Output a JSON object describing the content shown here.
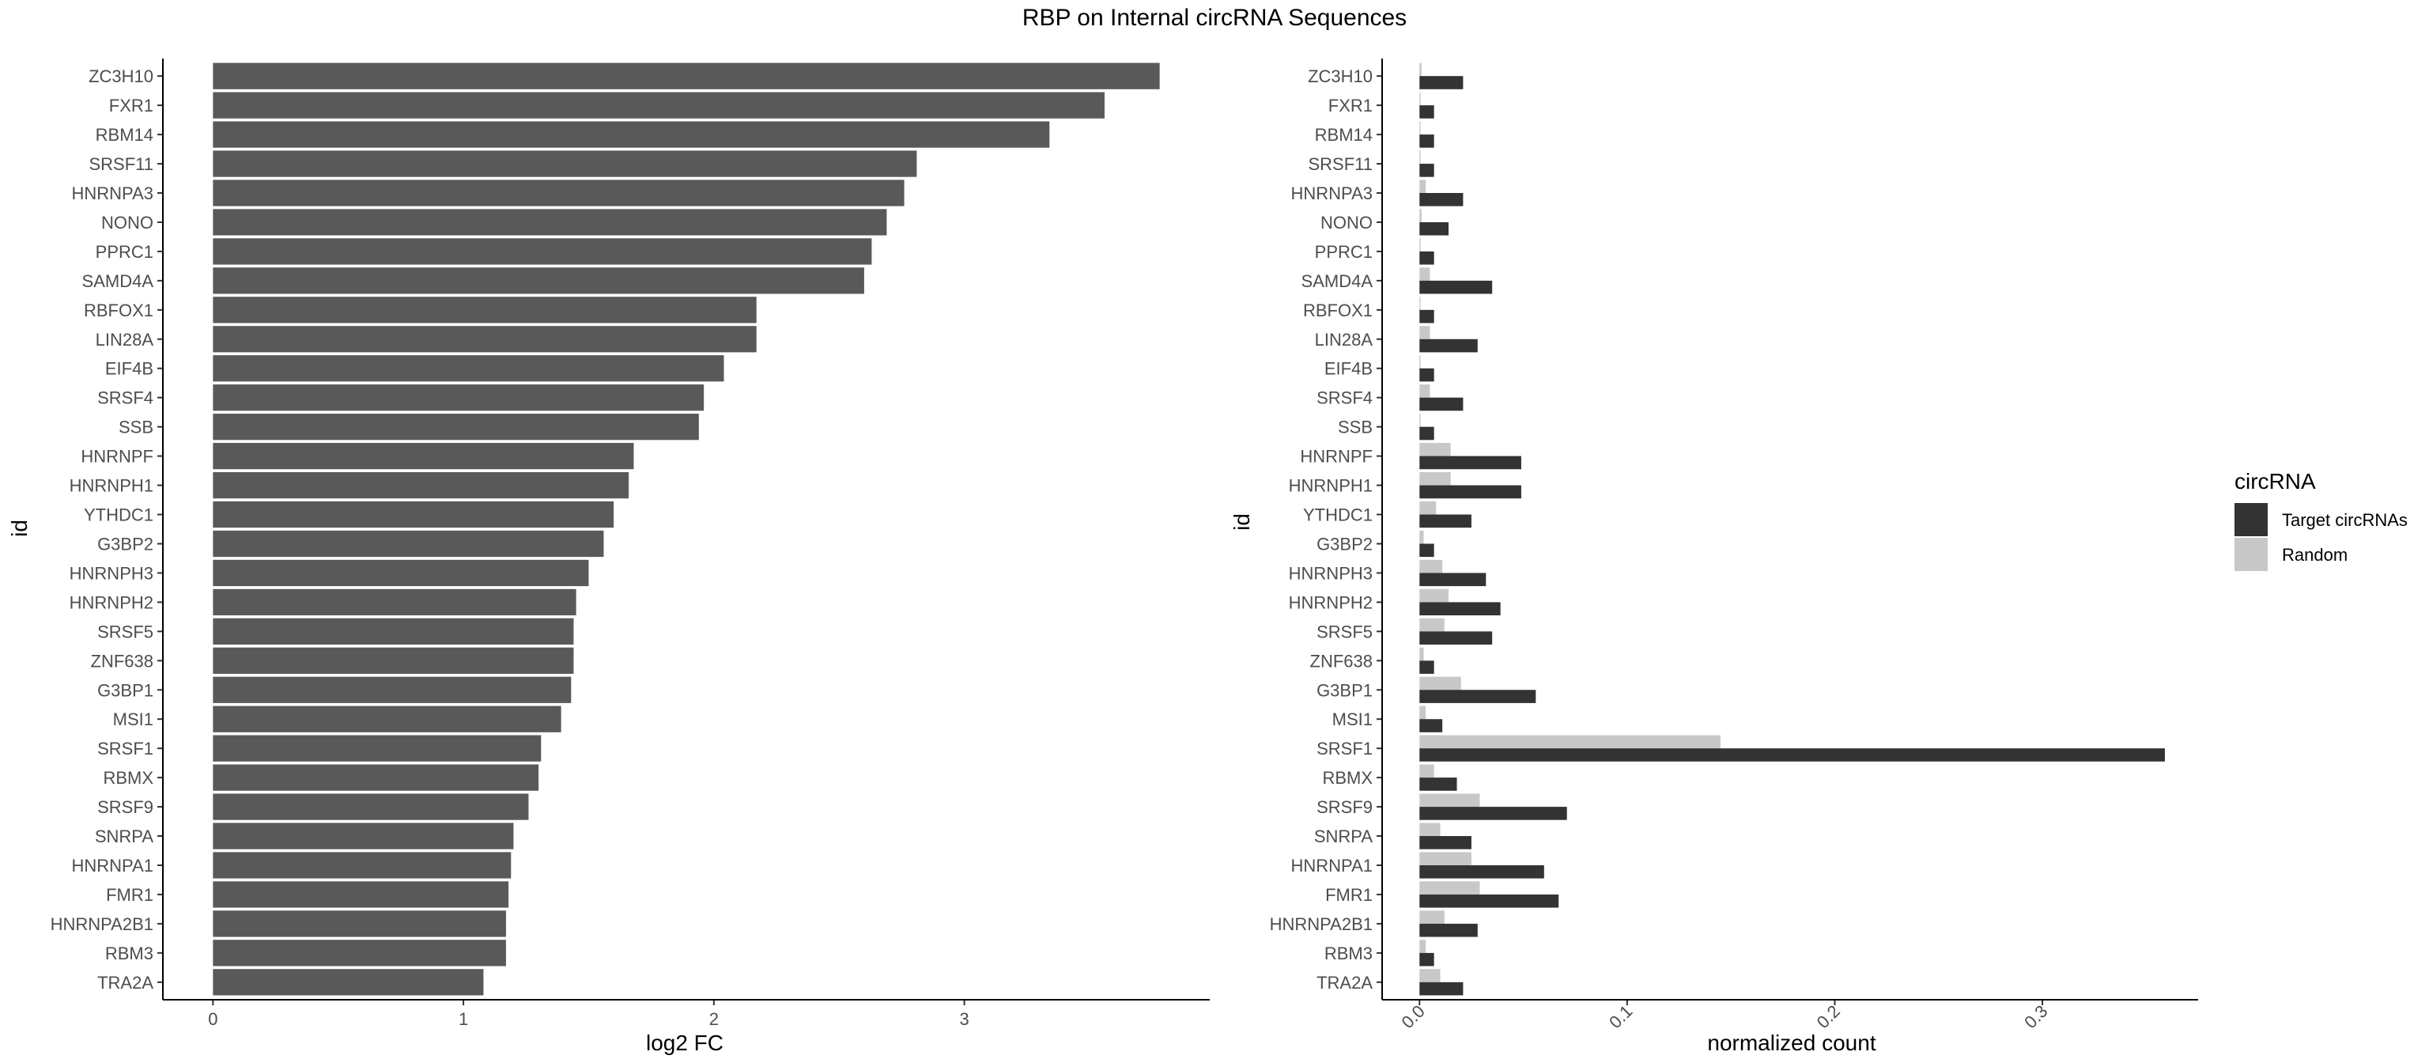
{
  "chart_data": [
    {
      "type": "bar",
      "orientation": "horizontal",
      "title": "RBP on Internal circRNA Sequences",
      "xlabel": "log2 FC",
      "ylabel": "id",
      "xticks": [
        "0",
        "1",
        "2",
        "3"
      ],
      "xlim": [
        -0.2,
        3.98
      ],
      "grid": false,
      "bar_color": "#595959",
      "categories": [
        "ZC3H10",
        "FXR1",
        "RBM14",
        "SRSF11",
        "HNRNPA3",
        "NONO",
        "PPRC1",
        "SAMD4A",
        "RBFOX1",
        "LIN28A",
        "EIF4B",
        "SRSF4",
        "SSB",
        "HNRNPF",
        "HNRNPH1",
        "YTHDC1",
        "G3BP2",
        "HNRNPH3",
        "HNRNPH2",
        "SRSF5",
        "ZNF638",
        "G3BP1",
        "MSI1",
        "SRSF1",
        "RBMX",
        "SRSF9",
        "SNRPA",
        "HNRNPA1",
        "FMR1",
        "HNRNPA2B1",
        "RBM3",
        "TRA2A"
      ],
      "values": [
        3.78,
        3.56,
        3.34,
        2.81,
        2.76,
        2.69,
        2.63,
        2.6,
        2.17,
        2.17,
        2.04,
        1.96,
        1.94,
        1.68,
        1.66,
        1.6,
        1.56,
        1.5,
        1.45,
        1.44,
        1.44,
        1.43,
        1.39,
        1.31,
        1.3,
        1.26,
        1.2,
        1.19,
        1.18,
        1.17,
        1.17,
        1.08
      ]
    },
    {
      "type": "bar",
      "orientation": "horizontal",
      "xlabel": "normalized count",
      "ylabel": "id",
      "xticks": [
        "0.0",
        "0.1",
        "0.2",
        "0.3"
      ],
      "xlim": [
        -0.018,
        0.375
      ],
      "grid": false,
      "legend_title": "circRNA",
      "legend_position": "right",
      "categories": [
        "ZC3H10",
        "FXR1",
        "RBM14",
        "SRSF11",
        "HNRNPA3",
        "NONO",
        "PPRC1",
        "SAMD4A",
        "RBFOX1",
        "LIN28A",
        "EIF4B",
        "SRSF4",
        "SSB",
        "HNRNPF",
        "HNRNPH1",
        "YTHDC1",
        "G3BP2",
        "HNRNPH3",
        "HNRNPH2",
        "SRSF5",
        "ZNF638",
        "G3BP1",
        "MSI1",
        "SRSF1",
        "RBMX",
        "SRSF9",
        "SNRPA",
        "HNRNPA1",
        "FMR1",
        "HNRNPA2B1",
        "RBM3",
        "TRA2A"
      ],
      "series": [
        {
          "name": "Random",
          "color": "#c8c8c8",
          "values": [
            0.001,
            0.0005,
            0.0005,
            0.0005,
            0.003,
            0.001,
            0.0005,
            0.005,
            0.0005,
            0.005,
            0.0005,
            0.005,
            0.0005,
            0.015,
            0.015,
            0.008,
            0.002,
            0.011,
            0.014,
            0.012,
            0.002,
            0.02,
            0.003,
            0.145,
            0.007,
            0.029,
            0.01,
            0.025,
            0.029,
            0.012,
            0.003,
            0.01
          ]
        },
        {
          "name": "Target circRNAs",
          "color": "#333333",
          "values": [
            0.021,
            0.007,
            0.007,
            0.007,
            0.021,
            0.014,
            0.007,
            0.035,
            0.007,
            0.028,
            0.007,
            0.021,
            0.007,
            0.049,
            0.049,
            0.025,
            0.007,
            0.032,
            0.039,
            0.035,
            0.007,
            0.056,
            0.011,
            0.359,
            0.018,
            0.071,
            0.025,
            0.06,
            0.067,
            0.028,
            0.007,
            0.021
          ]
        }
      ]
    }
  ]
}
